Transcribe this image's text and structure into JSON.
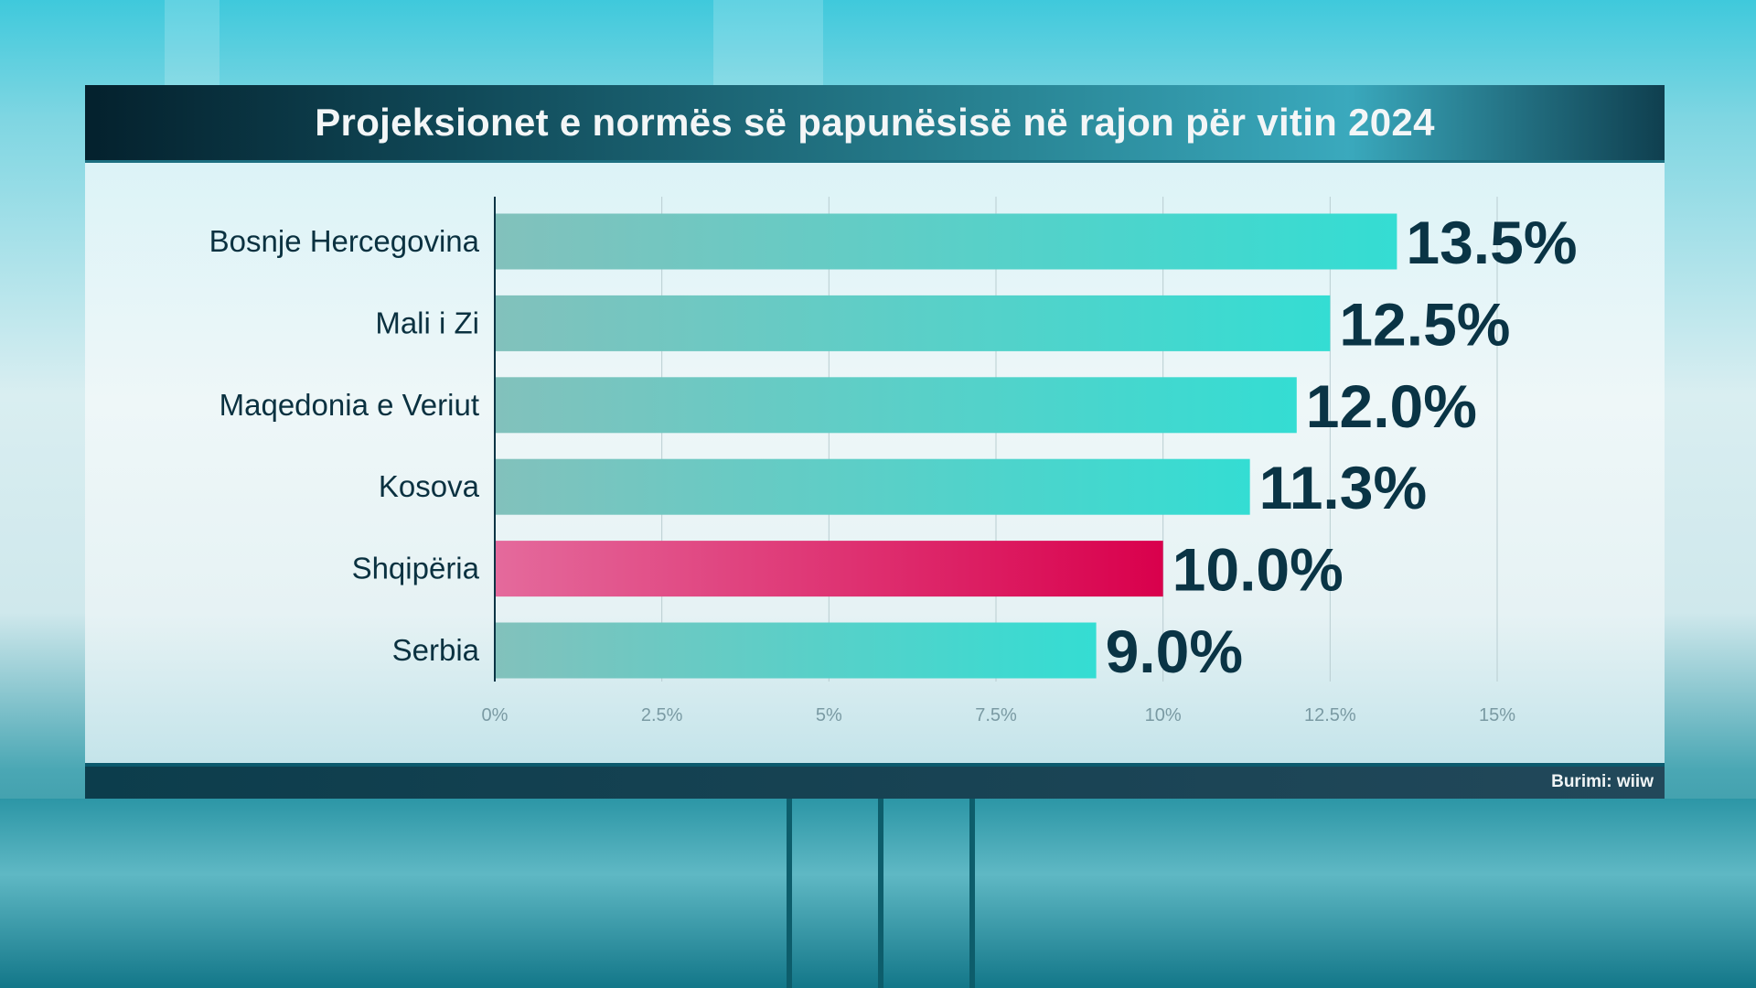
{
  "title": "Projeksionet e normës së papunësisë në rajon për vitin 2024",
  "source": "Burimi: wiiw",
  "colors": {
    "bar": "#34ddd3",
    "bar_start": "#82c1bc",
    "highlight": "#d9004c",
    "highlight_start": "#e46a9c",
    "text": "#0a3445"
  },
  "chart_data": {
    "type": "bar",
    "orientation": "horizontal",
    "title": "Projeksionet e normës së papunësisë në rajon për vitin 2024",
    "categories": [
      "Bosnje Hercegovina",
      "Mali i Zi",
      "Maqedonia e Veriut",
      "Kosova",
      "Shqipëria",
      "Serbia"
    ],
    "values": [
      13.5,
      12.5,
      12.0,
      11.3,
      10.0,
      9.0
    ],
    "value_labels": [
      "13.5%",
      "12.5%",
      "12.0%",
      "11.3%",
      "10.0%",
      "9.0%"
    ],
    "highlight": "Shqipëria",
    "xlim": [
      0,
      15
    ],
    "xticks": [
      0,
      2.5,
      5,
      7.5,
      10,
      12.5,
      15
    ],
    "xtick_labels": [
      "0%",
      "2.5%",
      "5%",
      "7.5%",
      "10%",
      "12.5%",
      "15%"
    ],
    "grid": true,
    "xlabel": "",
    "ylabel": ""
  }
}
